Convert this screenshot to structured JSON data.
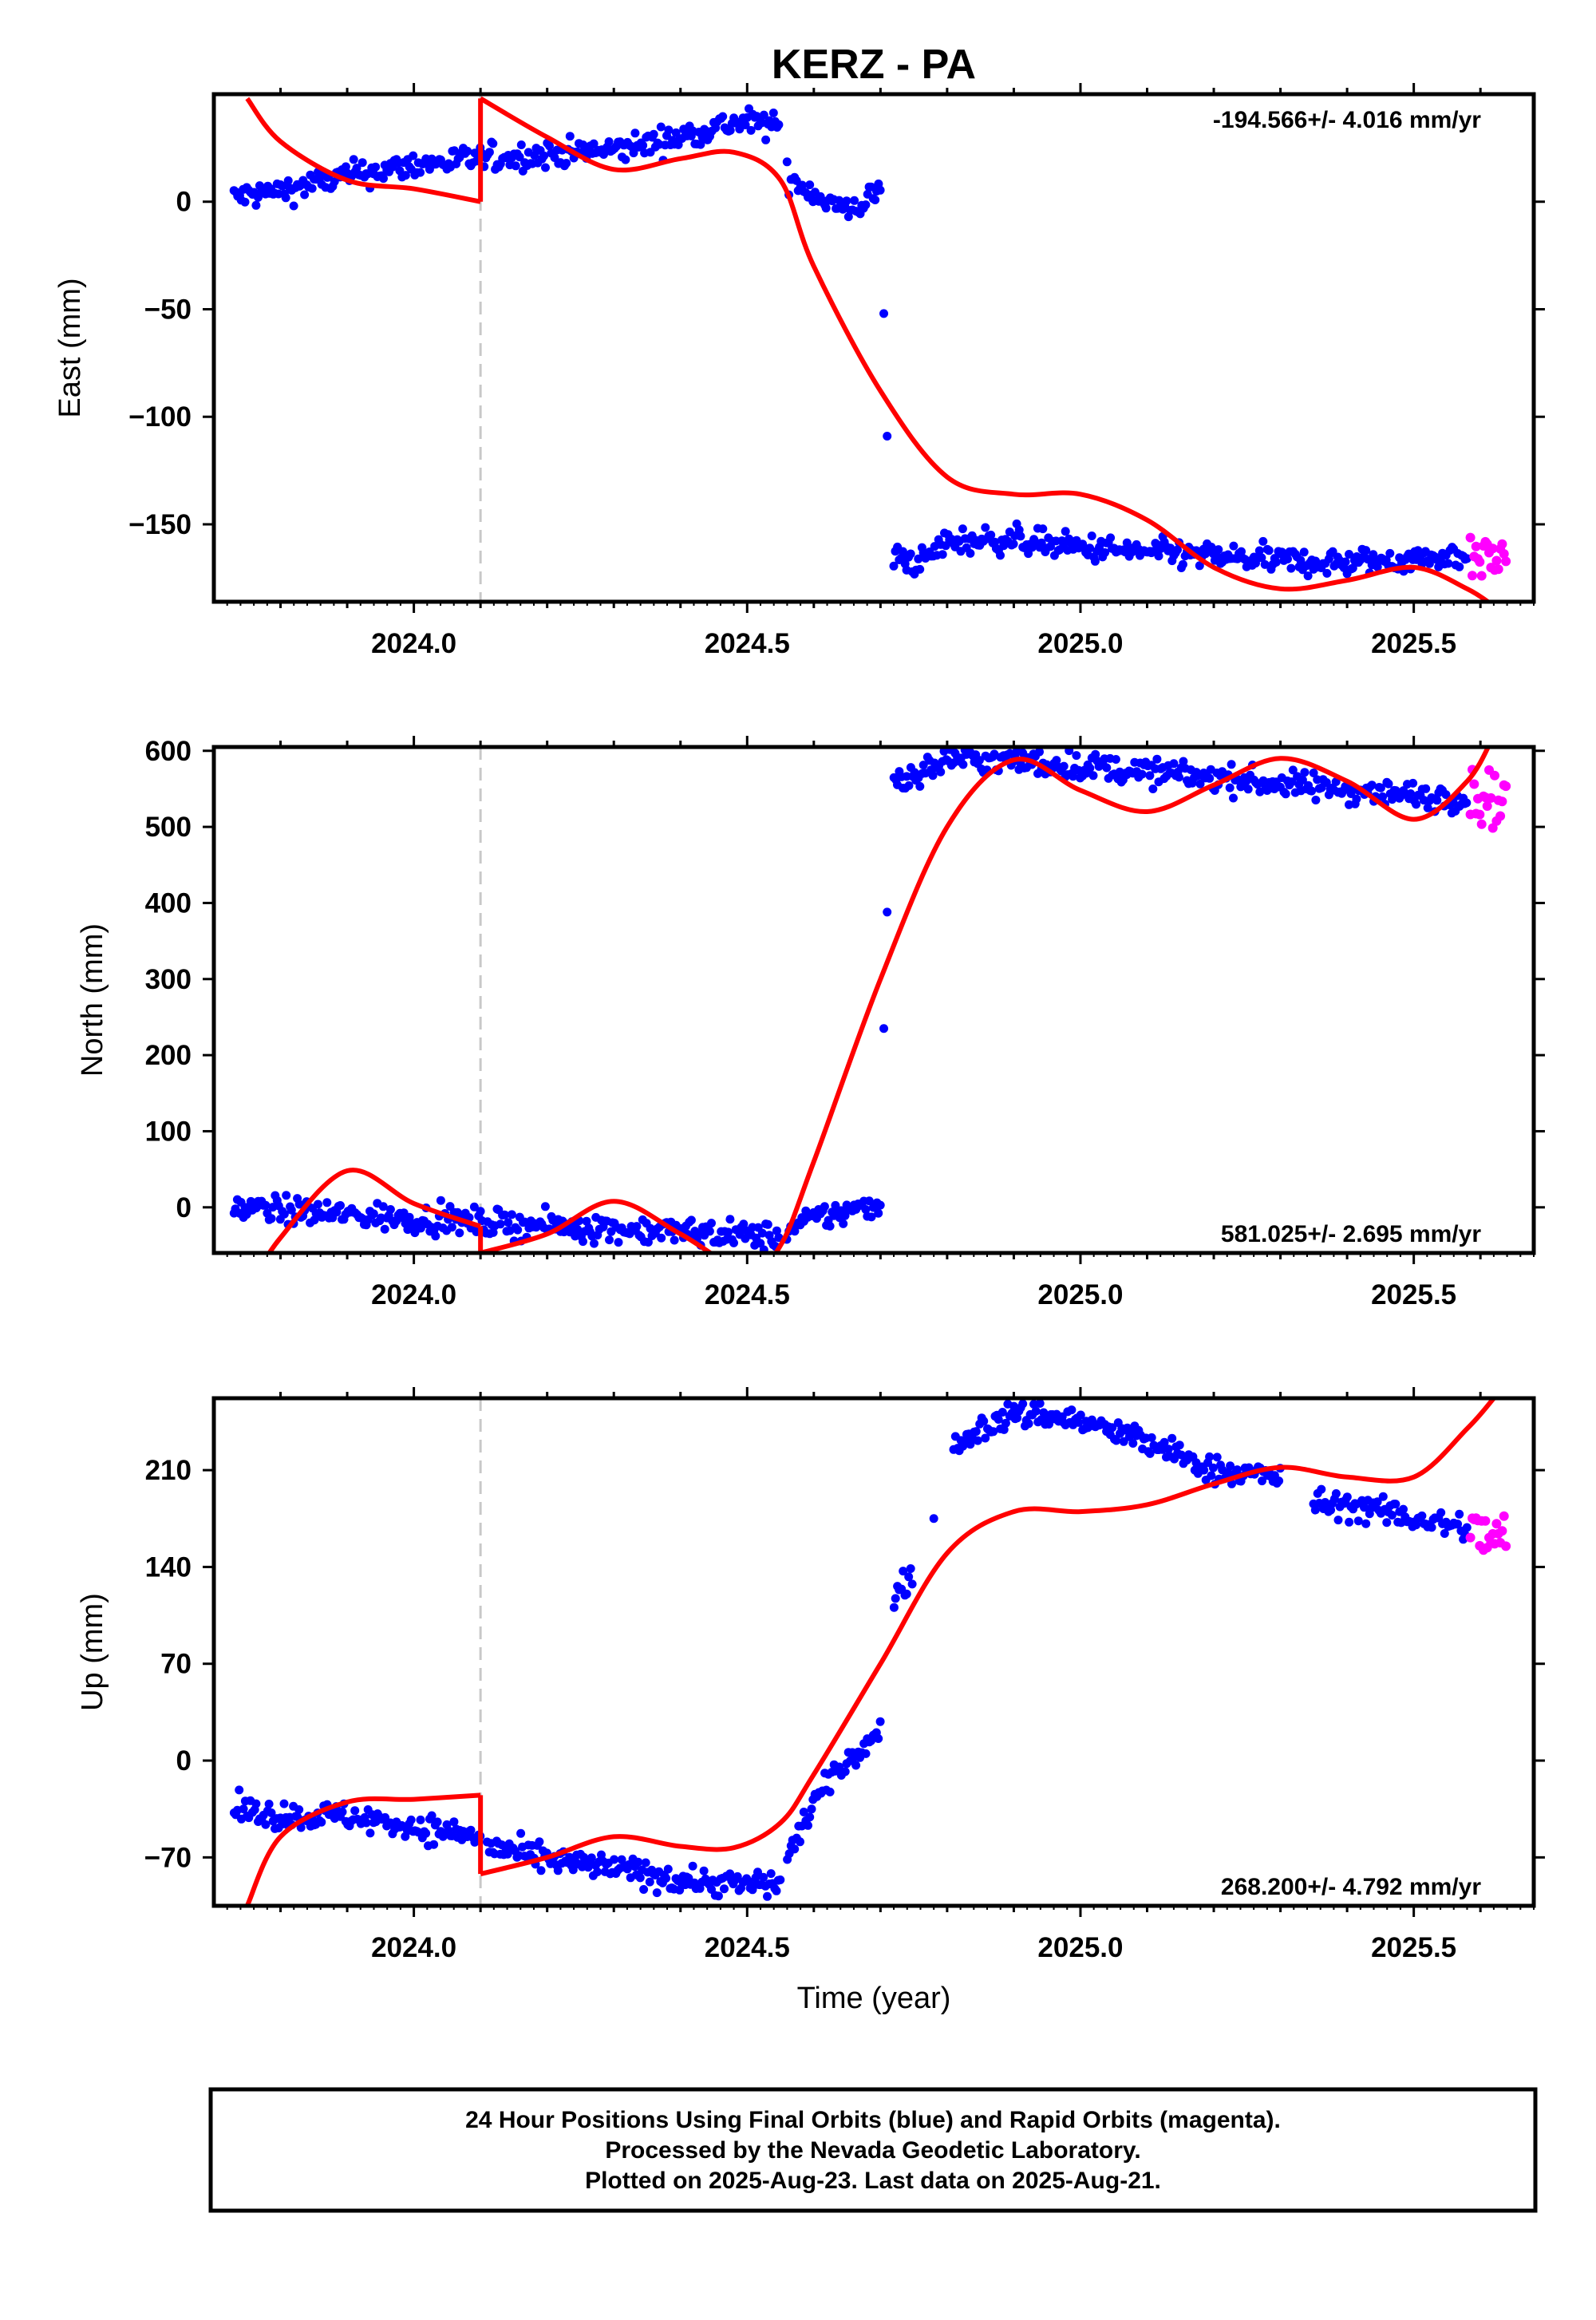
{
  "title": "KERZ - PA",
  "xlabel": "Time (year)",
  "footer": {
    "line1": "24 Hour Positions Using Final Orbits (blue) and Rapid Orbits (magenta).",
    "line2": "Processed by the Nevada Geodetic Laboratory.",
    "line3": "Plotted on 2025-Aug-23. Last data on 2025-Aug-21."
  },
  "colors": {
    "final_orbits": "#0000ff",
    "rapid_orbits": "#ff00ff",
    "model": "#ff0000",
    "offset_line": "#c8c8c8",
    "frame": "#000000"
  },
  "offset_epoch": 2024.1,
  "xaxis": {
    "range": [
      2023.7,
      2025.68
    ],
    "major_ticks": [
      2024.0,
      2024.5,
      2025.0,
      2025.5
    ],
    "major_labels": [
      "2024.0",
      "2024.5",
      "2025.0",
      "2025.5"
    ]
  },
  "chart_data": [
    {
      "type": "scatter",
      "ylabel": "East (mm)",
      "rate": "-194.566+/- 4.016 mm/yr",
      "rate_position": "top-right",
      "ylim": [
        -186,
        50
      ],
      "yticks": [
        0,
        -50,
        -100,
        -150
      ],
      "ytick_labels": [
        "0",
        "−50",
        "−100",
        "−150"
      ],
      "final_segments": [
        {
          "x": [
            2023.73,
            2023.8,
            2023.9,
            2024.0,
            2024.1,
            2024.2,
            2024.3,
            2024.4,
            2024.45,
            2024.5,
            2024.55
          ],
          "y": [
            2,
            5,
            12,
            17,
            20,
            22,
            24,
            30,
            35,
            37,
            35
          ]
        },
        {
          "x": [
            2024.56,
            2024.6,
            2024.65,
            2024.7
          ],
          "y": [
            12,
            4,
            -5,
            5
          ]
        },
        {
          "x": [
            2024.72,
            2024.76,
            2024.8,
            2024.9,
            2025.0,
            2025.1,
            2025.2,
            2025.3,
            2025.4,
            2025.5,
            2025.58
          ],
          "y": [
            -165,
            -168,
            -158,
            -157,
            -161,
            -163,
            -165,
            -167,
            -168,
            -166,
            -164
          ]
        }
      ],
      "final_outliers": {
        "x": [
          2024.705,
          2024.71
        ],
        "y": [
          -52,
          -109
        ]
      },
      "rapid": {
        "x": [
          2025.585,
          2025.64
        ],
        "y": [
          -165,
          -166
        ]
      },
      "model": {
        "pre": {
          "x": [
            2023.75,
            2023.8,
            2023.9,
            2024.0,
            2024.1
          ],
          "y": [
            48,
            28,
            10,
            6,
            0
          ]
        },
        "post": {
          "x": [
            2024.1,
            2024.2,
            2024.3,
            2024.4,
            2024.48,
            2024.55,
            2024.6,
            2024.7,
            2024.8,
            2024.9,
            2025.0,
            2025.1,
            2025.2,
            2025.3,
            2025.4,
            2025.5,
            2025.58,
            2025.62
          ],
          "y": [
            48,
            30,
            15,
            20,
            23,
            10,
            -30,
            -88,
            -128,
            -136,
            -136,
            -148,
            -170,
            -180,
            -176,
            -170,
            -180,
            -188
          ]
        }
      }
    },
    {
      "type": "scatter",
      "ylabel": "North (mm)",
      "rate": "581.025+/- 2.695 mm/yr",
      "rate_position": "bottom-right",
      "ylim": [
        -60,
        605
      ],
      "yticks": [
        0,
        100,
        200,
        300,
        400,
        500,
        600
      ],
      "ytick_labels": [
        "0",
        "100",
        "200",
        "300",
        "400",
        "500",
        "600"
      ],
      "final_segments": [
        {
          "x": [
            2023.73,
            2023.9,
            2024.1,
            2024.3,
            2024.5,
            2024.55
          ],
          "y": [
            0,
            -10,
            -20,
            -28,
            -36,
            -40
          ]
        },
        {
          "x": [
            2024.56,
            2024.6,
            2024.65,
            2024.7
          ],
          "y": [
            -32,
            -15,
            -5,
            5
          ]
        },
        {
          "x": [
            2024.72,
            2024.76,
            2024.8,
            2024.85,
            2024.9,
            2025.0,
            2025.1,
            2025.2,
            2025.3,
            2025.4,
            2025.5,
            2025.58
          ],
          "y": [
            562,
            570,
            590,
            588,
            586,
            580,
            572,
            565,
            556,
            549,
            541,
            538
          ]
        }
      ],
      "final_outliers": {
        "x": [
          2024.705,
          2024.71
        ],
        "y": [
          235,
          388
        ]
      },
      "rapid": {
        "x": [
          2025.585,
          2025.64
        ],
        "y": [
          540,
          536
        ]
      },
      "model": {
        "pre": {
          "x": [
            2023.75,
            2023.8,
            2023.9,
            2024.0,
            2024.1
          ],
          "y": [
            -110,
            -40,
            48,
            5,
            -25
          ]
        },
        "post": {
          "x": [
            2024.1,
            2024.2,
            2024.3,
            2024.4,
            2024.5,
            2024.55,
            2024.6,
            2024.7,
            2024.8,
            2024.9,
            2025.0,
            2025.1,
            2025.2,
            2025.3,
            2025.4,
            2025.5,
            2025.58,
            2025.62
          ],
          "y": [
            -60,
            -35,
            8,
            -35,
            -85,
            -50,
            60,
            300,
            500,
            588,
            548,
            520,
            555,
            590,
            560,
            510,
            560,
            620
          ]
        }
      }
    },
    {
      "type": "scatter",
      "ylabel": "Up (mm)",
      "rate": "268.200+/- 4.792 mm/yr",
      "rate_position": "bottom-right",
      "ylim": [
        -105,
        262
      ],
      "yticks": [
        -70,
        0,
        70,
        140,
        210
      ],
      "ytick_labels": [
        "−70",
        "0",
        "70",
        "140",
        "210"
      ],
      "final_segments": [
        {
          "x": [
            2023.73,
            2023.8,
            2023.9,
            2024.0,
            2024.1
          ],
          "y": [
            -35,
            -40,
            -40,
            -48,
            -55
          ]
        },
        {
          "x": [
            2024.11,
            2024.2,
            2024.3,
            2024.4,
            2024.5,
            2024.55
          ],
          "y": [
            -62,
            -72,
            -78,
            -86,
            -90,
            -88
          ]
        },
        {
          "x": [
            2024.56,
            2024.6,
            2024.65,
            2024.7
          ],
          "y": [
            -70,
            -30,
            0,
            20
          ]
        },
        {
          "x": [
            2024.72,
            2024.75
          ],
          "y": [
            120,
            135
          ]
        },
        {
          "x": [
            2024.81,
            2024.85,
            2024.9,
            2024.95,
            2025.0,
            2025.05,
            2025.1,
            2025.2,
            2025.3
          ],
          "y": [
            225,
            240,
            250,
            250,
            245,
            238,
            230,
            210,
            205
          ]
        },
        {
          "x": [
            2025.35,
            2025.4,
            2025.45,
            2025.5,
            2025.58
          ],
          "y": [
            185,
            185,
            180,
            175,
            168
          ]
        }
      ],
      "final_outliers": {
        "x": [
          2024.78
        ],
        "y": [
          175
        ]
      },
      "rapid": {
        "x": [
          2025.585,
          2025.64
        ],
        "y": [
          165,
          160
        ]
      },
      "model": {
        "pre": {
          "x": [
            2023.75,
            2023.8,
            2023.9,
            2024.0,
            2024.1
          ],
          "y": [
            -105,
            -55,
            -30,
            -28,
            -25
          ]
        },
        "post": {
          "x": [
            2024.1,
            2024.2,
            2024.3,
            2024.4,
            2024.48,
            2024.55,
            2024.6,
            2024.7,
            2024.8,
            2024.9,
            2025.0,
            2025.1,
            2025.2,
            2025.3,
            2025.4,
            2025.5,
            2025.58,
            2025.62
          ],
          "y": [
            -82,
            -70,
            -55,
            -62,
            -63,
            -45,
            -10,
            70,
            150,
            180,
            180,
            185,
            200,
            212,
            205,
            205,
            240,
            262
          ]
        }
      }
    }
  ]
}
